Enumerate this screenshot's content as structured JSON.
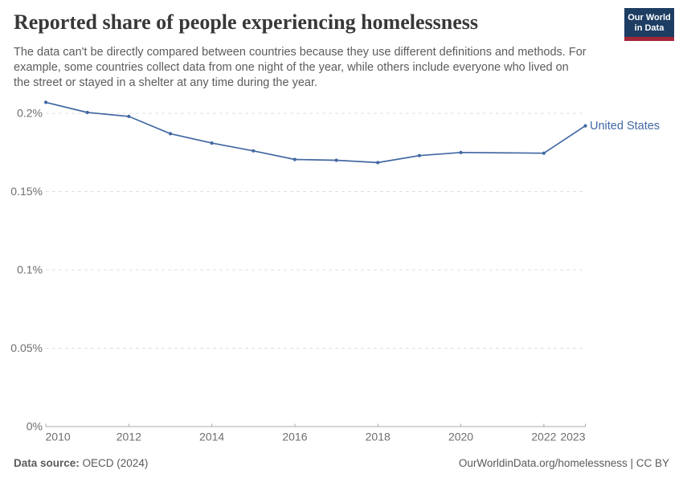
{
  "header": {
    "title": "Reported share of people experiencing homelessness",
    "subtitle_lines": [
      "The data can't be directly compared between countries because they use different definitions and methods. For",
      "example, some countries collect data from one night of the year, while others include everyone who lived on",
      "the street or stayed in a shelter at any time during the year."
    ],
    "logo": {
      "line1": "Our World",
      "line2": "in Data"
    }
  },
  "chart_data": {
    "type": "line",
    "title": "Reported share of people experiencing homelessness",
    "x": [
      2010,
      2011,
      2012,
      2013,
      2014,
      2015,
      2016,
      2017,
      2018,
      2019,
      2020,
      2021,
      2022,
      2023
    ],
    "series": [
      {
        "name": "United States",
        "color": "#4268a3",
        "values": [
          0.207,
          0.2005,
          0.198,
          0.187,
          0.181,
          0.176,
          0.1705,
          0.17,
          0.1685,
          0.173,
          0.175,
          null,
          0.1745,
          0.192
        ]
      }
    ],
    "x_tick_labels": [
      2010,
      2012,
      2014,
      2016,
      2018,
      2020,
      2022,
      2023
    ],
    "y_ticks": [
      0,
      0.05,
      0.1,
      0.15,
      0.2
    ],
    "y_tick_labels": [
      "0%",
      "0.05%",
      "0.1%",
      "0.15%",
      "0.2%"
    ],
    "xlim": [
      2010,
      2023
    ],
    "ylim": [
      0,
      0.21
    ],
    "unit": "%",
    "grid": "horizontal-dashed",
    "legend": "line-end-label",
    "markers": true
  },
  "footer": {
    "source_label": "Data source:",
    "source_value": "OECD (2024)",
    "attribution": "OurWorldinData.org/homelessness | CC BY"
  },
  "colors": {
    "accent_blue": "#4268a3",
    "logo_bg": "#1d3d63",
    "logo_stripe": "#a52639",
    "gridline": "#e0e0e0",
    "axis": "#a8a8a8",
    "tick_label": "#6e6e6e",
    "title_text": "#383838",
    "body_text": "#5c5c5c"
  }
}
